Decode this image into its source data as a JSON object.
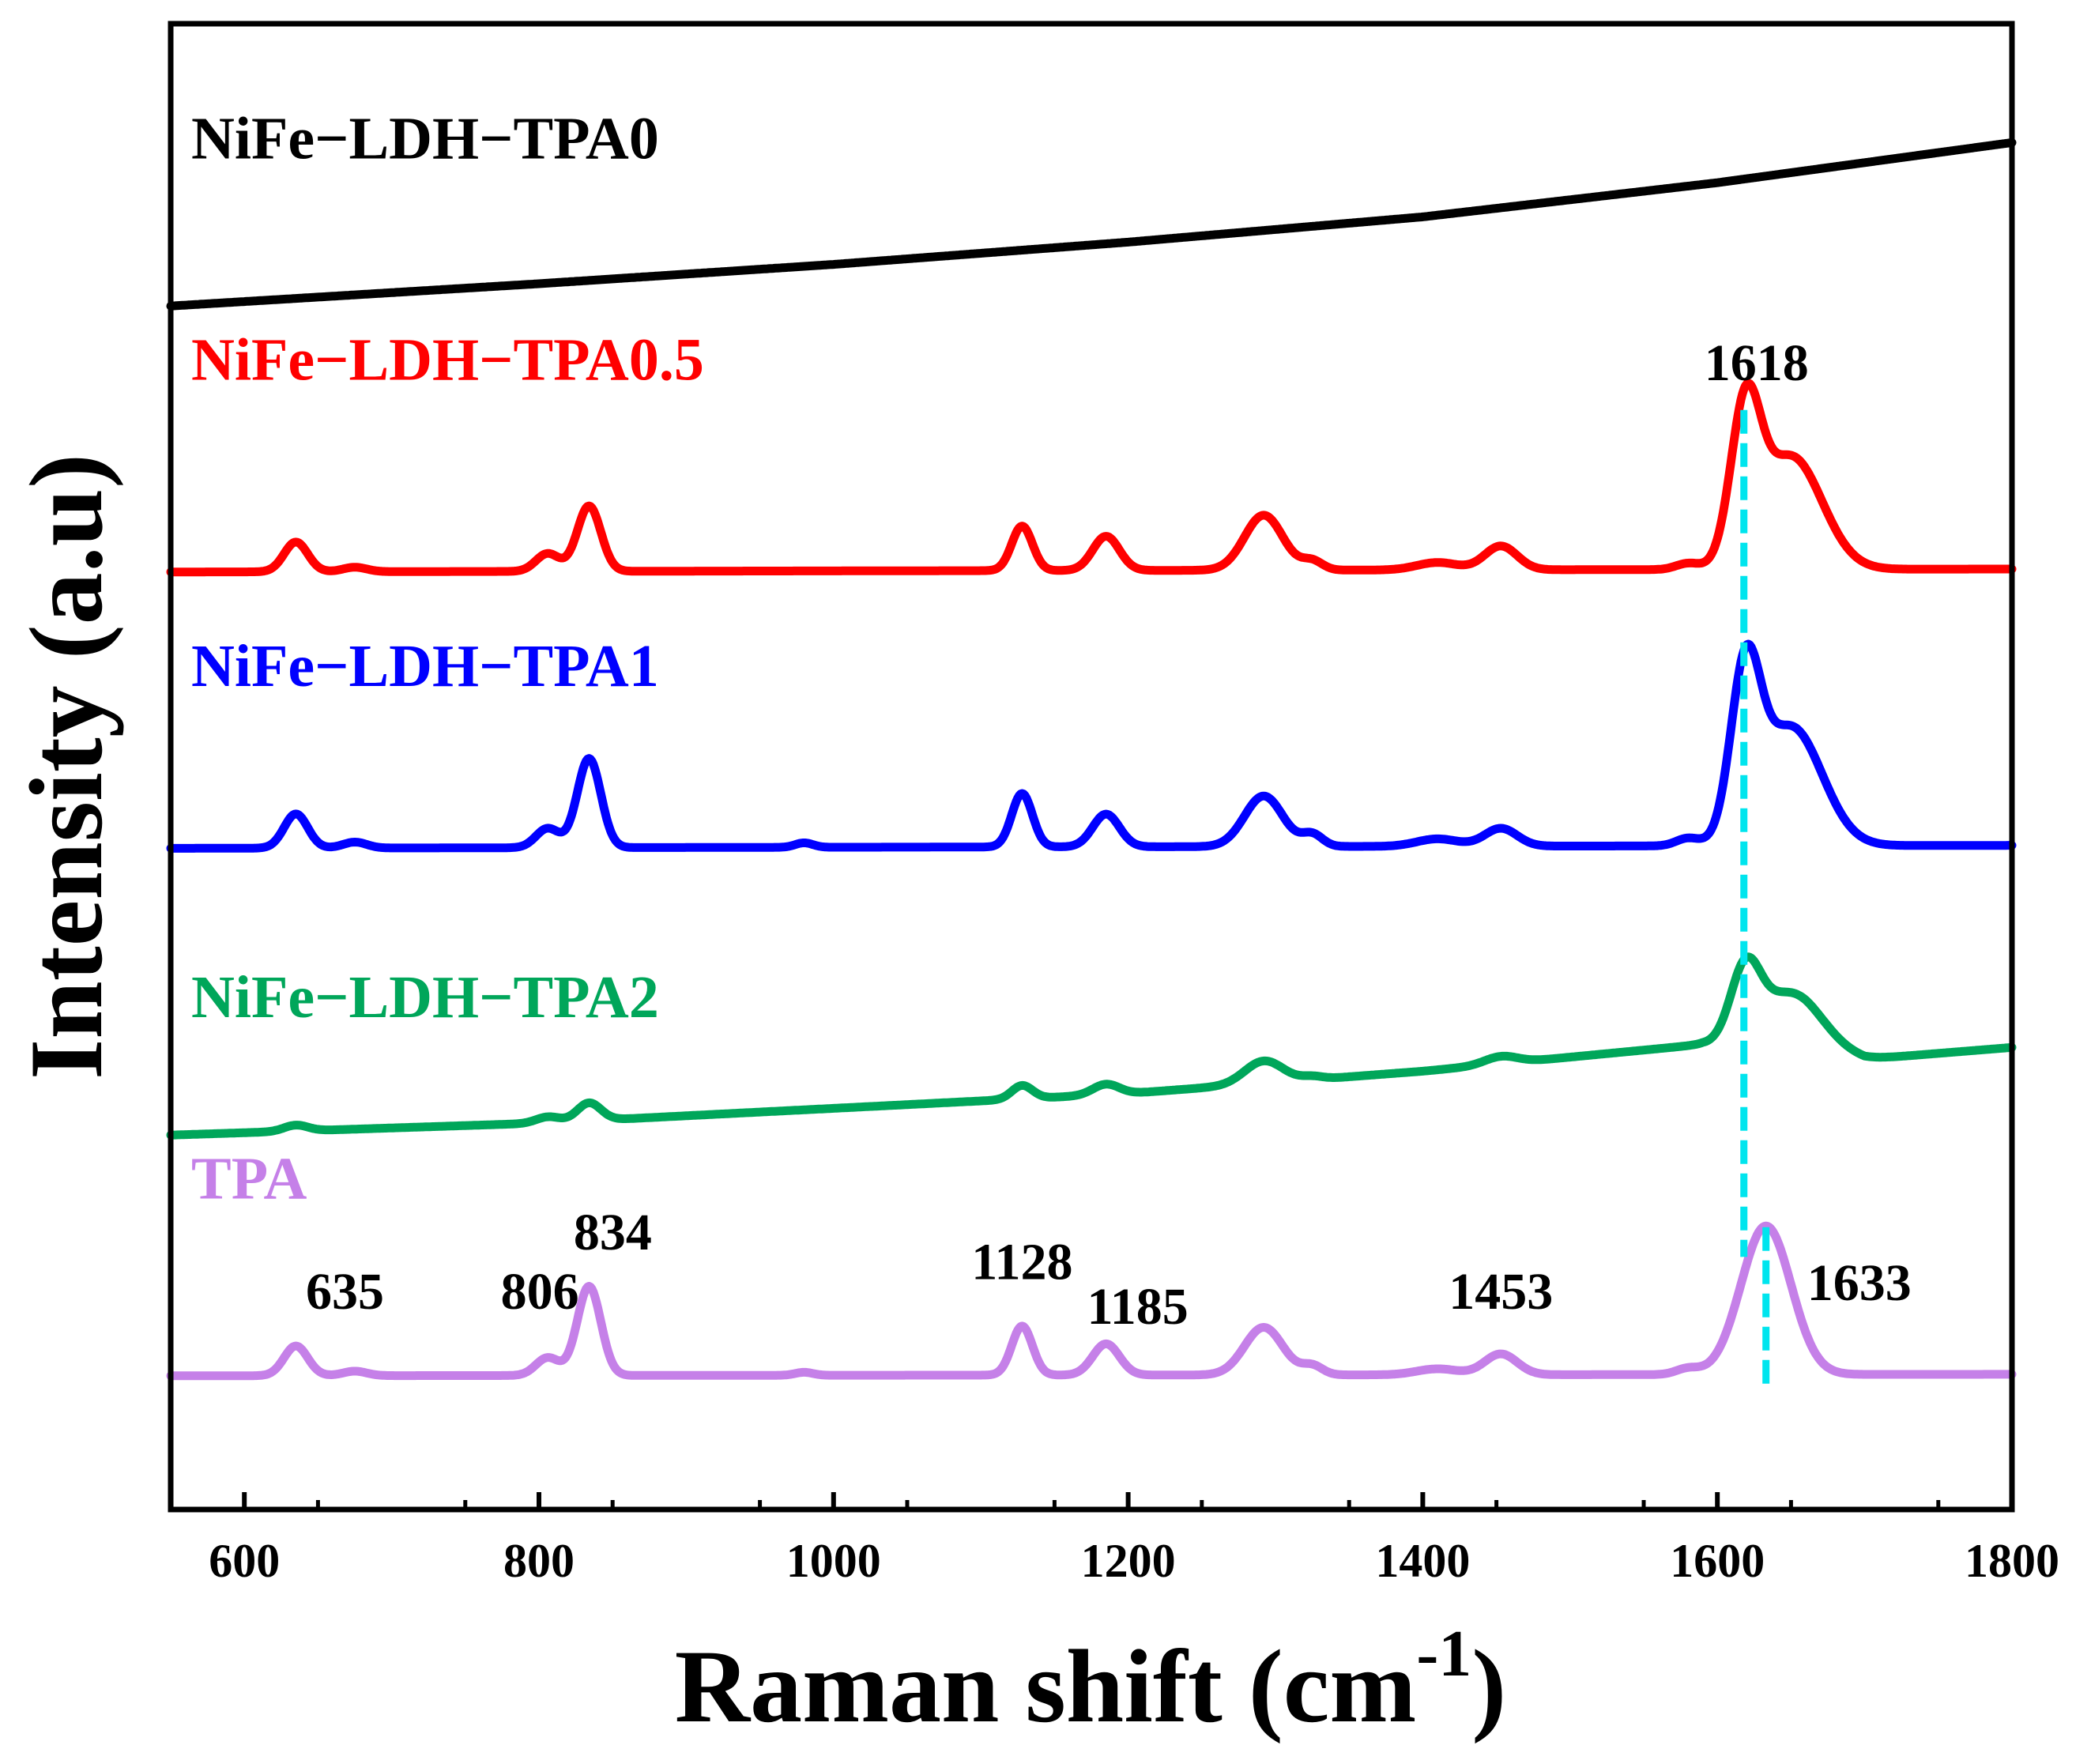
{
  "chart_data": {
    "type": "line",
    "title": "",
    "xlabel": "Raman shift (cm",
    "xlabel_sup": "-1",
    "xlabel_close": ")",
    "ylabel": "Intensity (a.u)",
    "xlim": [
      550,
      1800
    ],
    "ylim": [
      0,
      100
    ],
    "xticks": [
      600,
      800,
      1000,
      1200,
      1400,
      1600,
      1800
    ],
    "xtick_labels": [
      "600",
      "800",
      "1000",
      "1200",
      "1400",
      "1600",
      "1800"
    ],
    "yticks": [],
    "grid": false,
    "legend": "none (series names written next to each curve)",
    "series": [
      {
        "name": "NiFe−LDH−TPA0",
        "color": "#000000",
        "baseline": [
          [
            550,
            81.0
          ],
          [
            800,
            82.5
          ],
          [
            1000,
            83.8
          ],
          [
            1200,
            85.3
          ],
          [
            1400,
            87.0
          ],
          [
            1600,
            89.3
          ],
          [
            1800,
            92.0
          ]
        ],
        "peaks": []
      },
      {
        "name": "NiFe−LDH−TPA0.5",
        "color": "#ff0000",
        "baseline": [
          [
            550,
            63.1
          ],
          [
            1800,
            63.3
          ]
        ],
        "peaks": [
          [
            635,
            2.0,
            8
          ],
          [
            675,
            0.3,
            8
          ],
          [
            806,
            1.2,
            8
          ],
          [
            834,
            4.4,
            8
          ],
          [
            1128,
            3.0,
            7
          ],
          [
            1185,
            2.3,
            9
          ],
          [
            1292,
            3.7,
            13
          ],
          [
            1325,
            0.6,
            7
          ],
          [
            1410,
            0.5,
            14
          ],
          [
            1453,
            1.6,
            11
          ],
          [
            1580,
            0.4,
            8
          ],
          [
            1619,
            9.8,
            10
          ],
          [
            1650,
            7.6,
            21
          ]
        ]
      },
      {
        "name": "NiFe−LDH−TPA1",
        "color": "#0000ff",
        "baseline": [
          [
            550,
            44.5
          ],
          [
            1800,
            44.7
          ]
        ],
        "peaks": [
          [
            635,
            2.3,
            8
          ],
          [
            675,
            0.4,
            8
          ],
          [
            806,
            1.3,
            8
          ],
          [
            834,
            6.0,
            8
          ],
          [
            980,
            0.3,
            6
          ],
          [
            1128,
            3.6,
            7
          ],
          [
            1185,
            2.2,
            9
          ],
          [
            1292,
            3.4,
            13
          ],
          [
            1325,
            0.8,
            7
          ],
          [
            1410,
            0.5,
            14
          ],
          [
            1453,
            1.2,
            11
          ],
          [
            1580,
            0.5,
            8
          ],
          [
            1619,
            10.7,
            10
          ],
          [
            1650,
            8.0,
            21
          ]
        ]
      },
      {
        "name": "NiFe−LDH−TPA2",
        "color": "#00a65a",
        "baseline": [
          [
            550,
            25.2
          ],
          [
            800,
            26.0
          ],
          [
            1000,
            27.0
          ],
          [
            1200,
            28.0
          ],
          [
            1400,
            29.5
          ],
          [
            1590,
            31.3
          ],
          [
            1660,
            30.9
          ],
          [
            1700,
            30.3
          ],
          [
            1800,
            31.1
          ]
        ],
        "peaks": [
          [
            635,
            0.4,
            8
          ],
          [
            806,
            0.4,
            8
          ],
          [
            834,
            1.2,
            8
          ],
          [
            1128,
            0.9,
            7
          ],
          [
            1185,
            0.7,
            9
          ],
          [
            1292,
            1.5,
            13
          ],
          [
            1325,
            0.2,
            7
          ],
          [
            1453,
            0.5,
            11
          ],
          [
            1619,
            4.7,
            10
          ],
          [
            1650,
            3.8,
            21
          ]
        ]
      },
      {
        "name": "TPA",
        "color": "#c580e8",
        "baseline": [
          [
            550,
            9.0
          ],
          [
            1800,
            9.1
          ]
        ],
        "peaks": [
          [
            635,
            2.0,
            8
          ],
          [
            675,
            0.3,
            8
          ],
          [
            806,
            1.2,
            8
          ],
          [
            834,
            6.0,
            8
          ],
          [
            980,
            0.2,
            6
          ],
          [
            1128,
            3.3,
            7
          ],
          [
            1185,
            2.1,
            9
          ],
          [
            1292,
            3.2,
            13
          ],
          [
            1325,
            0.6,
            7
          ],
          [
            1410,
            0.4,
            14
          ],
          [
            1453,
            1.4,
            11
          ],
          [
            1580,
            0.4,
            8
          ],
          [
            1633,
            10.0,
            17
          ]
        ]
      }
    ],
    "series_label_positions": [
      "above-left",
      "above-left",
      "above-left",
      "above-left",
      "above-left"
    ],
    "reference_lines": [
      {
        "x": 1618,
        "label": "1618",
        "color": "#00e5ee",
        "y_from": 17,
        "y_to": 74
      },
      {
        "x": 1633,
        "label": "1633",
        "color": "#00e5ee",
        "y_from": 8,
        "y_to": 19
      }
    ],
    "annotations": [
      {
        "text": "635",
        "x": 635,
        "y": 13.5
      },
      {
        "text": "806",
        "x": 806,
        "y": 13.5
      },
      {
        "text": "834",
        "x": 834,
        "y": 17.5
      },
      {
        "text": "1128",
        "x": 1128,
        "y": 15.5
      },
      {
        "text": "1185",
        "x": 1185,
        "y": 12.5
      },
      {
        "text": "1453",
        "x": 1453,
        "y": 13.5
      }
    ]
  }
}
